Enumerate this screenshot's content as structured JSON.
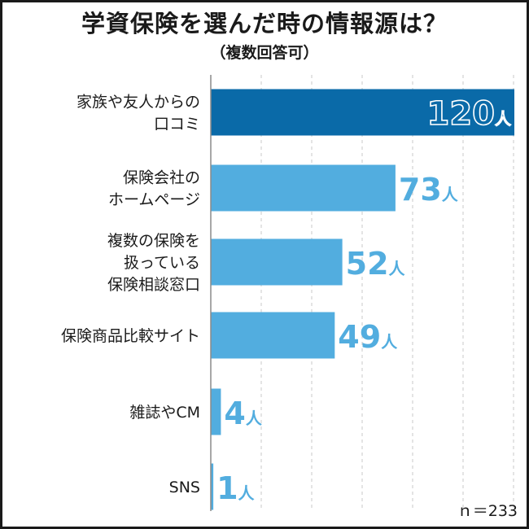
{
  "title": "学資保険を選んだ時の情報源は？",
  "subtitle": "（複数回答可）",
  "note": "ｎ＝233",
  "colors": {
    "highlight": "#0a6aa8",
    "bar": "#52addf",
    "text": "#1a1a1a",
    "grid": "#c9c9c9"
  },
  "chart_data": {
    "type": "bar",
    "orientation": "horizontal",
    "categories": [
      [
        "家族や友人からの",
        "口コミ"
      ],
      [
        "保険会社の",
        "ホームページ"
      ],
      [
        "複数の保険を",
        "扱っている",
        "保険相談窓口"
      ],
      [
        "保険商品比較サイト"
      ],
      [
        "雑誌やCM"
      ],
      [
        "SNS"
      ]
    ],
    "values": [
      120,
      73,
      52,
      49,
      4,
      1
    ],
    "value_labels": [
      "120",
      "73",
      "52",
      "49",
      "4",
      "1"
    ],
    "unit": "人",
    "xlim": [
      0,
      120
    ],
    "grid": true,
    "highlight_index": 0
  }
}
